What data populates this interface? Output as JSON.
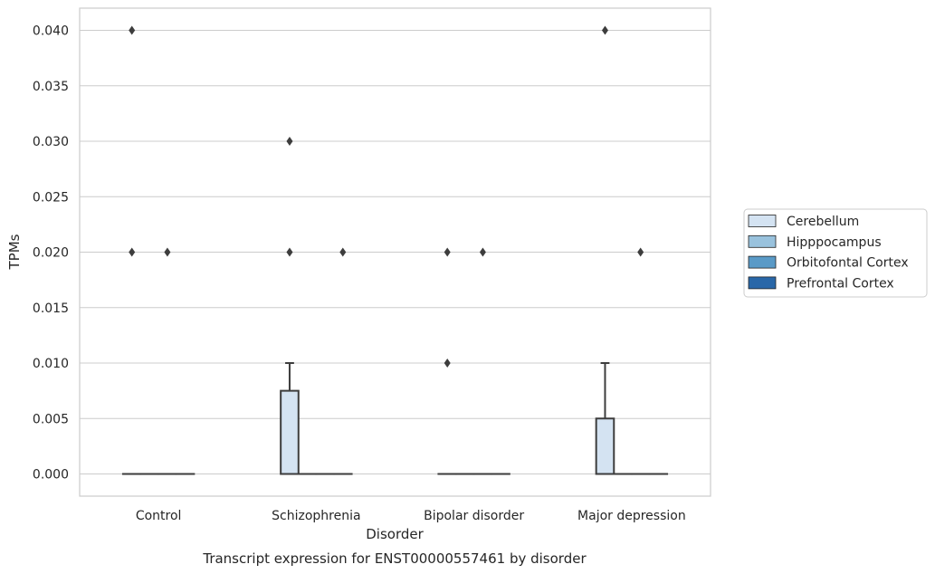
{
  "chart_data": {
    "type": "box",
    "title": "",
    "caption": "Transcript expression for ENST00000557461 by disorder",
    "xlabel": "Disorder",
    "ylabel": "TPMs",
    "categories": [
      "Control",
      "Schizophrenia",
      "Bipolar disorder",
      "Major depression"
    ],
    "ylim": [
      -0.002,
      0.042
    ],
    "yticks": [
      "0.000",
      "0.005",
      "0.010",
      "0.015",
      "0.020",
      "0.025",
      "0.030",
      "0.035",
      "0.040"
    ],
    "grid": true,
    "legend_position": "right",
    "series": [
      {
        "name": "Cerebellum",
        "color": "#d4e3f2",
        "boxes": [
          {
            "category": "Control",
            "q1": 0,
            "median": 0,
            "q3": 0,
            "whisker_low": 0,
            "whisker_high": 0,
            "outliers": [
              0.04,
              0.02
            ]
          },
          {
            "category": "Schizophrenia",
            "q1": 0,
            "median": 0,
            "q3": 0.0075,
            "whisker_low": 0,
            "whisker_high": 0.01,
            "outliers": [
              0.03,
              0.02
            ]
          },
          {
            "category": "Bipolar disorder",
            "q1": 0,
            "median": 0,
            "q3": 0,
            "whisker_low": 0,
            "whisker_high": 0,
            "outliers": [
              0.02,
              0.01
            ]
          },
          {
            "category": "Major depression",
            "q1": 0,
            "median": 0,
            "q3": 0.005,
            "whisker_low": 0,
            "whisker_high": 0.01,
            "outliers": [
              0.04
            ]
          }
        ]
      },
      {
        "name": "Hipppocampus",
        "color": "#99c2dd",
        "boxes": [
          {
            "category": "Control",
            "q1": 0,
            "median": 0,
            "q3": 0,
            "whisker_low": 0,
            "whisker_high": 0,
            "outliers": []
          },
          {
            "category": "Schizophrenia",
            "q1": 0,
            "median": 0,
            "q3": 0,
            "whisker_low": 0,
            "whisker_high": 0,
            "outliers": []
          },
          {
            "category": "Bipolar disorder",
            "q1": 0,
            "median": 0,
            "q3": 0,
            "whisker_low": 0,
            "whisker_high": 0,
            "outliers": []
          },
          {
            "category": "Major depression",
            "q1": 0,
            "median": 0,
            "q3": 0,
            "whisker_low": 0,
            "whisker_high": 0,
            "outliers": []
          }
        ]
      },
      {
        "name": "Orbitofontal Cortex",
        "color": "#5a9ac7",
        "boxes": [
          {
            "category": "Control",
            "q1": 0,
            "median": 0,
            "q3": 0,
            "whisker_low": 0,
            "whisker_high": 0,
            "outliers": [
              0.02
            ]
          },
          {
            "category": "Schizophrenia",
            "q1": 0,
            "median": 0,
            "q3": 0,
            "whisker_low": 0,
            "whisker_high": 0,
            "outliers": []
          },
          {
            "category": "Bipolar disorder",
            "q1": 0,
            "median": 0,
            "q3": 0,
            "whisker_low": 0,
            "whisker_high": 0,
            "outliers": [
              0.02
            ]
          },
          {
            "category": "Major depression",
            "q1": 0,
            "median": 0,
            "q3": 0,
            "whisker_low": 0,
            "whisker_high": 0,
            "outliers": [
              0.02
            ]
          }
        ]
      },
      {
        "name": "Prefrontal Cortex",
        "color": "#2967a8",
        "boxes": [
          {
            "category": "Control",
            "q1": 0,
            "median": 0,
            "q3": 0,
            "whisker_low": 0,
            "whisker_high": 0,
            "outliers": []
          },
          {
            "category": "Schizophrenia",
            "q1": 0,
            "median": 0,
            "q3": 0,
            "whisker_low": 0,
            "whisker_high": 0,
            "outliers": [
              0.02
            ]
          },
          {
            "category": "Bipolar disorder",
            "q1": 0,
            "median": 0,
            "q3": 0,
            "whisker_low": 0,
            "whisker_high": 0,
            "outliers": []
          },
          {
            "category": "Major depression",
            "q1": 0,
            "median": 0,
            "q3": 0,
            "whisker_low": 0,
            "whisker_high": 0,
            "outliers": []
          }
        ]
      }
    ]
  },
  "colors": {
    "grid": "#cccccc",
    "frame": "#cccccc",
    "line": "#3d3d3d",
    "text": "#262626"
  }
}
